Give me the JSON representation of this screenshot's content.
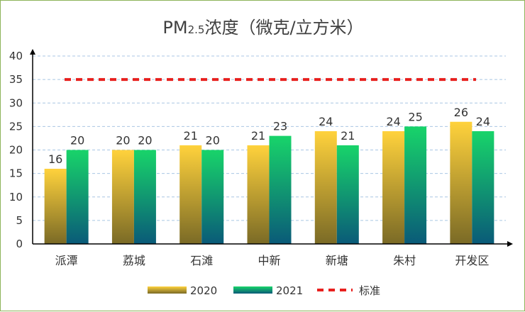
{
  "chart_data": {
    "type": "bar",
    "title": {
      "prefix": "PM",
      "sub": "2.5",
      "suffix": "浓度（微克/立方米）"
    },
    "categories": [
      "派潭",
      "荔城",
      "石滩",
      "中新",
      "新塘",
      "朱村",
      "开发区"
    ],
    "series": [
      {
        "name": "2020",
        "values": [
          16,
          20,
          21,
          21,
          24,
          24,
          26
        ],
        "color_top": "#ffd23c",
        "color_bottom": "#7a6a26"
      },
      {
        "name": "2021",
        "values": [
          20,
          20,
          20,
          23,
          21,
          25,
          24
        ],
        "color_top": "#18d46a",
        "color_bottom": "#0a5a78"
      }
    ],
    "standard": {
      "name": "标准",
      "value": 35,
      "color": "#e8201e"
    },
    "ylim": [
      0,
      40
    ],
    "yticks": [
      "0",
      "5",
      "10",
      "15",
      "20",
      "25",
      "30",
      "35",
      "40"
    ],
    "grid": true,
    "legend_position": "bottom"
  }
}
